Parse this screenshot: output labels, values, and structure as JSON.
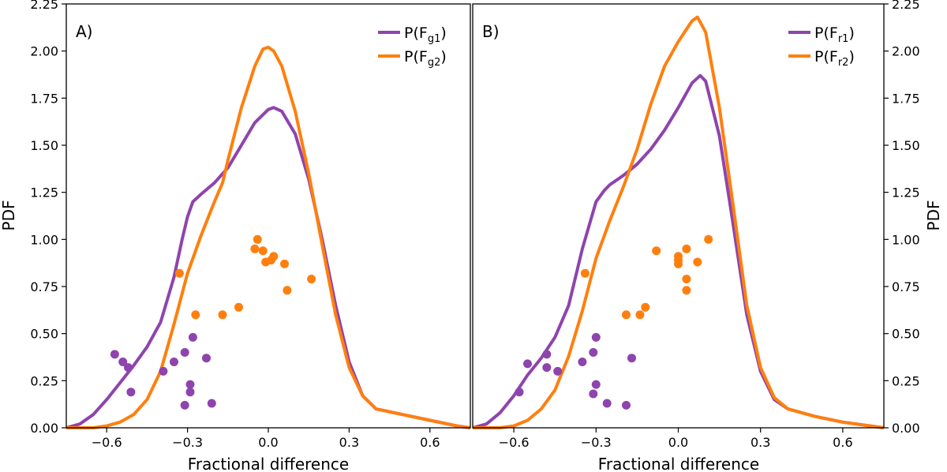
{
  "colors": {
    "purple": "#8e44ad",
    "orange": "#ff7f0e"
  },
  "chart_data": [
    {
      "type": "line",
      "panel_label": "A)",
      "xlabel": "Fractional difference",
      "ylabel": "PDF",
      "ylabel_side": "left",
      "xlim": [
        -0.75,
        0.75
      ],
      "ylim": [
        0,
        2.25
      ],
      "xticks": [
        -0.6,
        -0.3,
        0.0,
        0.3,
        0.6
      ],
      "xtick_labels": [
        "−0.6",
        "−0.3",
        "0.0",
        "0.3",
        "0.6"
      ],
      "yticks": [
        0,
        0.25,
        0.5,
        0.75,
        1.0,
        1.25,
        1.5,
        1.75,
        2.0,
        2.25
      ],
      "ytick_labels": [
        "0.00",
        "0.25",
        "0.50",
        "0.75",
        "1.00",
        "1.25",
        "1.50",
        "1.75",
        "2.00",
        "2.25"
      ],
      "legend_position": "top-right",
      "series": [
        {
          "name": "P(Fg1)",
          "legend_main": "P(F",
          "legend_sub": "g1",
          "legend_close": ")",
          "color": "#8e44ad",
          "x": [
            -0.75,
            -0.7,
            -0.65,
            -0.6,
            -0.55,
            -0.5,
            -0.45,
            -0.4,
            -0.35,
            -0.32,
            -0.3,
            -0.28,
            -0.25,
            -0.2,
            -0.15,
            -0.1,
            -0.05,
            0.0,
            0.02,
            0.05,
            0.1,
            0.15,
            0.2,
            0.25,
            0.3,
            0.35,
            0.4,
            0.5,
            0.6,
            0.7,
            0.75
          ],
          "y": [
            0.0,
            0.02,
            0.07,
            0.15,
            0.24,
            0.33,
            0.43,
            0.56,
            0.8,
            1.0,
            1.12,
            1.2,
            1.24,
            1.3,
            1.38,
            1.5,
            1.62,
            1.69,
            1.7,
            1.68,
            1.56,
            1.32,
            1.0,
            0.65,
            0.35,
            0.17,
            0.1,
            0.07,
            0.04,
            0.01,
            0.0
          ]
        },
        {
          "name": "P(Fg2)",
          "legend_main": "P(F",
          "legend_sub": "g2",
          "legend_close": ")",
          "color": "#ff7f0e",
          "x": [
            -0.75,
            -0.7,
            -0.65,
            -0.6,
            -0.55,
            -0.5,
            -0.45,
            -0.4,
            -0.35,
            -0.3,
            -0.25,
            -0.2,
            -0.17,
            -0.15,
            -0.1,
            -0.05,
            -0.02,
            0.0,
            0.02,
            0.05,
            0.1,
            0.15,
            0.2,
            0.25,
            0.3,
            0.35,
            0.4,
            0.5,
            0.6,
            0.7,
            0.75
          ],
          "y": [
            0.0,
            0.0,
            0.0,
            0.01,
            0.03,
            0.07,
            0.15,
            0.3,
            0.55,
            0.82,
            1.02,
            1.2,
            1.3,
            1.42,
            1.7,
            1.92,
            2.01,
            2.02,
            2.0,
            1.92,
            1.68,
            1.35,
            0.97,
            0.6,
            0.32,
            0.17,
            0.1,
            0.07,
            0.04,
            0.01,
            0.0
          ]
        }
      ],
      "scatter": [
        {
          "name": "Fg1 points",
          "color": "#8e44ad",
          "points": [
            [
              -0.57,
              0.39
            ],
            [
              -0.54,
              0.35
            ],
            [
              -0.52,
              0.32
            ],
            [
              -0.51,
              0.19
            ],
            [
              -0.39,
              0.3
            ],
            [
              -0.35,
              0.35
            ],
            [
              -0.31,
              0.4
            ],
            [
              -0.31,
              0.12
            ],
            [
              -0.29,
              0.23
            ],
            [
              -0.29,
              0.19
            ],
            [
              -0.28,
              0.48
            ],
            [
              -0.23,
              0.37
            ],
            [
              -0.21,
              0.13
            ]
          ]
        },
        {
          "name": "Fg2 points",
          "color": "#ff7f0e",
          "points": [
            [
              -0.33,
              0.82
            ],
            [
              -0.27,
              0.6
            ],
            [
              -0.17,
              0.6
            ],
            [
              -0.11,
              0.64
            ],
            [
              -0.05,
              0.95
            ],
            [
              -0.04,
              1.0
            ],
            [
              -0.02,
              0.94
            ],
            [
              -0.01,
              0.88
            ],
            [
              0.01,
              0.89
            ],
            [
              0.02,
              0.91
            ],
            [
              0.06,
              0.87
            ],
            [
              0.07,
              0.73
            ],
            [
              0.16,
              0.79
            ]
          ]
        }
      ]
    },
    {
      "type": "line",
      "panel_label": "B)",
      "xlabel": "Fractional difference",
      "ylabel": "PDF",
      "ylabel_side": "right",
      "xlim": [
        -0.75,
        0.75
      ],
      "ylim": [
        0,
        2.25
      ],
      "xticks": [
        -0.6,
        -0.3,
        0.0,
        0.3,
        0.6
      ],
      "xtick_labels": [
        "−0.6",
        "−0.3",
        "0.0",
        "0.3",
        "0.6"
      ],
      "yticks": [
        0,
        0.25,
        0.5,
        0.75,
        1.0,
        1.25,
        1.5,
        1.75,
        2.0,
        2.25
      ],
      "ytick_labels": [
        "0.00",
        "0.25",
        "0.50",
        "0.75",
        "1.00",
        "1.25",
        "1.50",
        "1.75",
        "2.00",
        "2.25"
      ],
      "legend_position": "top-right",
      "series": [
        {
          "name": "P(Fr1)",
          "legend_main": "P(F",
          "legend_sub": "r1",
          "legend_close": ")",
          "color": "#8e44ad",
          "x": [
            -0.75,
            -0.7,
            -0.65,
            -0.6,
            -0.55,
            -0.5,
            -0.45,
            -0.4,
            -0.35,
            -0.3,
            -0.27,
            -0.25,
            -0.2,
            -0.15,
            -0.1,
            -0.05,
            0.0,
            0.05,
            0.08,
            0.1,
            0.15,
            0.2,
            0.25,
            0.3,
            0.35,
            0.4,
            0.5,
            0.6,
            0.7,
            0.75
          ],
          "y": [
            0.0,
            0.02,
            0.08,
            0.17,
            0.28,
            0.37,
            0.48,
            0.65,
            0.95,
            1.2,
            1.26,
            1.29,
            1.34,
            1.4,
            1.48,
            1.58,
            1.7,
            1.83,
            1.87,
            1.84,
            1.55,
            1.08,
            0.6,
            0.3,
            0.15,
            0.1,
            0.06,
            0.03,
            0.01,
            0.0
          ]
        },
        {
          "name": "P(Fr2)",
          "legend_main": "P(F",
          "legend_sub": "r2",
          "legend_close": ")",
          "color": "#ff7f0e",
          "x": [
            -0.75,
            -0.7,
            -0.65,
            -0.6,
            -0.55,
            -0.5,
            -0.45,
            -0.4,
            -0.35,
            -0.3,
            -0.25,
            -0.2,
            -0.15,
            -0.1,
            -0.05,
            0.0,
            0.05,
            0.07,
            0.1,
            0.15,
            0.2,
            0.25,
            0.3,
            0.35,
            0.4,
            0.5,
            0.6,
            0.7,
            0.75
          ],
          "y": [
            0.0,
            0.0,
            0.0,
            0.01,
            0.04,
            0.1,
            0.2,
            0.38,
            0.62,
            0.9,
            1.1,
            1.28,
            1.48,
            1.72,
            1.92,
            2.05,
            2.16,
            2.18,
            2.1,
            1.7,
            1.18,
            0.65,
            0.32,
            0.16,
            0.1,
            0.06,
            0.03,
            0.01,
            0.0
          ]
        }
      ],
      "scatter": [
        {
          "name": "Fr1 points",
          "color": "#8e44ad",
          "points": [
            [
              -0.58,
              0.19
            ],
            [
              -0.55,
              0.34
            ],
            [
              -0.48,
              0.39
            ],
            [
              -0.48,
              0.32
            ],
            [
              -0.44,
              0.3
            ],
            [
              -0.35,
              0.35
            ],
            [
              -0.31,
              0.4
            ],
            [
              -0.3,
              0.48
            ],
            [
              -0.31,
              0.18
            ],
            [
              -0.3,
              0.23
            ],
            [
              -0.26,
              0.13
            ],
            [
              -0.19,
              0.12
            ],
            [
              -0.17,
              0.37
            ]
          ]
        },
        {
          "name": "Fr2 points",
          "color": "#ff7f0e",
          "points": [
            [
              -0.34,
              0.82
            ],
            [
              -0.19,
              0.6
            ],
            [
              -0.14,
              0.6
            ],
            [
              -0.12,
              0.64
            ],
            [
              -0.08,
              0.94
            ],
            [
              0.0,
              0.91
            ],
            [
              0.0,
              0.89
            ],
            [
              0.0,
              0.87
            ],
            [
              0.03,
              0.79
            ],
            [
              0.03,
              0.73
            ],
            [
              0.03,
              0.95
            ],
            [
              0.07,
              0.88
            ],
            [
              0.11,
              1.0
            ]
          ]
        }
      ]
    }
  ]
}
